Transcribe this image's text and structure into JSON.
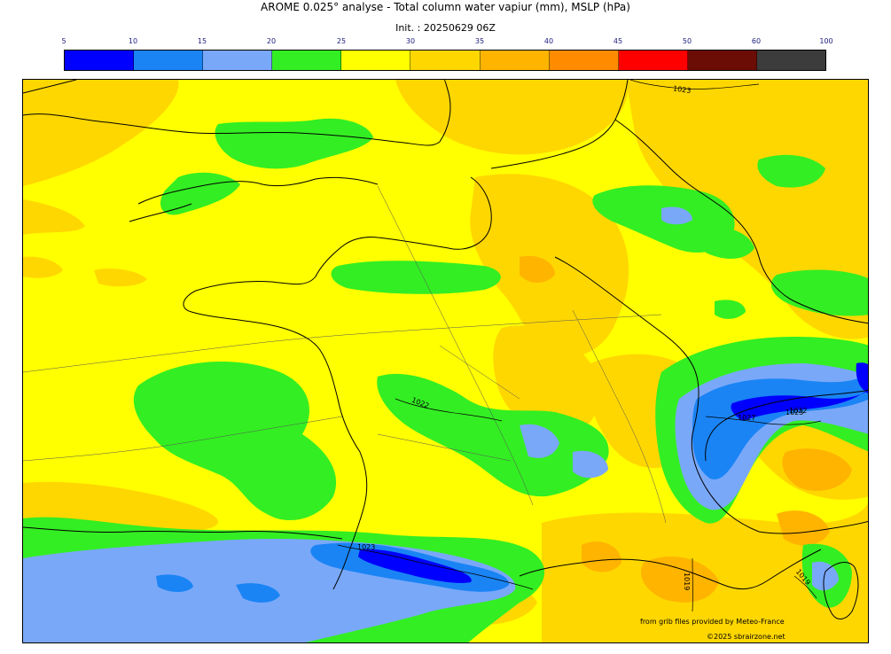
{
  "header": {
    "title": "AROME 0.025° analyse - Total column water vapiur (mm), MSLP (hPa)",
    "init": "Init. : 20250629 06Z"
  },
  "colorbar": {
    "ticks": [
      "5",
      "10",
      "15",
      "20",
      "25",
      "30",
      "35",
      "40",
      "45",
      "50",
      "60",
      "100"
    ],
    "colors": [
      "#0000ff",
      "#1a84f5",
      "#7aa8f8",
      "#33ee22",
      "#ffff00",
      "#ffd700",
      "#ffb400",
      "#ff8c00",
      "#ff0000",
      "#6b0d05",
      "#3c3c3c"
    ]
  },
  "map": {
    "isobar_labels": [
      "1023",
      "1022",
      "1023",
      "1023",
      "1027",
      "1022",
      "1019",
      "1019"
    ]
  },
  "credits": {
    "source": "from grib files provided by Meteo-France",
    "copyright": "©2025 sbrairzone.net"
  }
}
